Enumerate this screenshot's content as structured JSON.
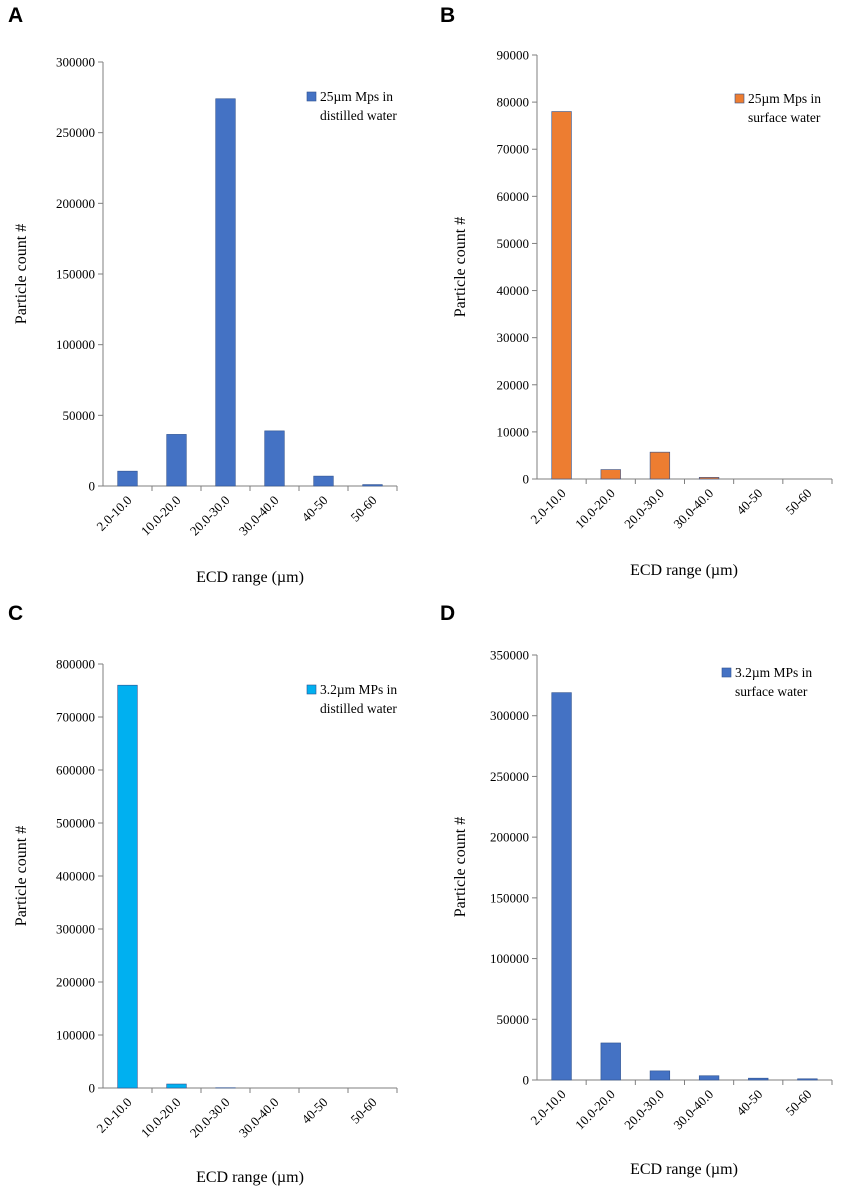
{
  "chart_data": [
    {
      "panel": "A",
      "type": "bar",
      "title": "",
      "xlabel": "ECD range (µm)",
      "ylabel": "Particle count #",
      "ylim": [
        0,
        300000
      ],
      "yticks": [
        0,
        50000,
        100000,
        150000,
        200000,
        250000,
        300000
      ],
      "ytick_labels": [
        "0",
        "50000",
        "100000",
        "150000",
        "200000",
        "250000",
        "300000"
      ],
      "categories": [
        "2.0-10.0",
        "10.0-20.0",
        "20.0-30.0",
        "30.0-40.0",
        "40-50",
        "50-60"
      ],
      "series": [
        {
          "name": "25µm Mps in distilled water",
          "legend_lines": [
            "25µm Mps in",
            "distilled water"
          ],
          "color": "#4472c4",
          "values": [
            10500,
            36500,
            274000,
            39000,
            7000,
            1000
          ]
        }
      ],
      "legend": "top-right",
      "grid": false
    },
    {
      "panel": "B",
      "type": "bar",
      "title": "",
      "xlabel": "ECD range (µm)",
      "ylabel": "Particle count #",
      "ylim": [
        0,
        90000
      ],
      "yticks": [
        0,
        10000,
        20000,
        30000,
        40000,
        50000,
        60000,
        70000,
        80000,
        90000
      ],
      "ytick_labels": [
        "0",
        "10000",
        "20000",
        "30000",
        "40000",
        "50000",
        "60000",
        "70000",
        "80000",
        "90000"
      ],
      "categories": [
        "2.0-10.0",
        "10.0-20.0",
        "20.0-30.0",
        "30.0-40.0",
        "40-50",
        "50-60"
      ],
      "series": [
        {
          "name": "25µm Mps in surface water",
          "legend_lines": [
            "25µm Mps in",
            "surface water"
          ],
          "color": "#ed7d31",
          "values": [
            78000,
            2000,
            5700,
            350,
            0,
            0
          ]
        }
      ],
      "legend": "top-right",
      "grid": false
    },
    {
      "panel": "C",
      "type": "bar",
      "title": "",
      "xlabel": "ECD range (µm)",
      "ylabel": "Particle count #",
      "ylim": [
        0,
        800000
      ],
      "yticks": [
        0,
        100000,
        200000,
        300000,
        400000,
        500000,
        600000,
        700000,
        800000
      ],
      "ytick_labels": [
        "0",
        "100000",
        "200000",
        "300000",
        "400000",
        "500000",
        "600000",
        "700000",
        "800000"
      ],
      "categories": [
        "2.0-10.0",
        "10.0-20.0",
        "20.0-30.0",
        "30.0-40.0",
        "40-50",
        "50-60"
      ],
      "series": [
        {
          "name": "3.2µm MPs in distilled water",
          "legend_lines": [
            "3.2µm MPs in",
            "distilled water"
          ],
          "color": "#00b0f0",
          "values": [
            760000,
            7500,
            500,
            0,
            0,
            0
          ]
        }
      ],
      "legend": "top-right",
      "grid": false
    },
    {
      "panel": "D",
      "type": "bar",
      "title": "",
      "xlabel": "ECD range (µm)",
      "ylabel": "Particle count #",
      "ylim": [
        0,
        350000
      ],
      "yticks": [
        0,
        50000,
        100000,
        150000,
        200000,
        250000,
        300000,
        350000
      ],
      "ytick_labels": [
        "0",
        "50000",
        "100000",
        "150000",
        "200000",
        "250000",
        "300000",
        "350000"
      ],
      "categories": [
        "2.0-10.0",
        "10.0-20.0",
        "20.0-30.0",
        "30.0-40.0",
        "40-50",
        "50-60"
      ],
      "series": [
        {
          "name": "3.2µm MPs in surface water",
          "legend_lines": [
            "3.2µm MPs in",
            "surface water"
          ],
          "color": "#4472c4",
          "values": [
            319000,
            30500,
            7500,
            3500,
            1500,
            1000
          ]
        }
      ],
      "legend": "top-right",
      "grid": false
    }
  ]
}
